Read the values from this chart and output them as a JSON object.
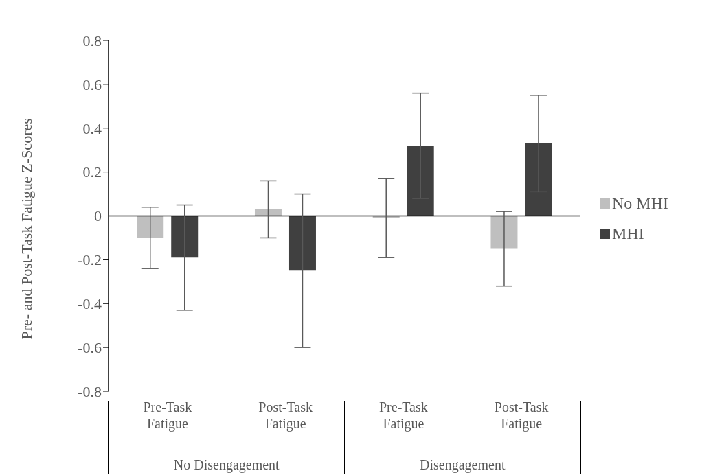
{
  "chart_data": {
    "type": "bar",
    "ylabel": "Pre- and Post-Task Fatigue Z-Scores",
    "categories": [
      "Pre-Task Fatigue",
      "Post-Task Fatigue",
      "Pre-Task Fatigue",
      "Post-Task Fatigue"
    ],
    "series": [
      {
        "name": "No MHI",
        "color": "#bfbfbf",
        "values": [
          -0.1,
          0.03,
          -0.01,
          -0.15
        ],
        "errors": [
          0.14,
          0.13,
          0.18,
          0.17
        ]
      },
      {
        "name": "MHI",
        "color": "#404040",
        "values": [
          -0.19,
          -0.25,
          0.32,
          0.33
        ],
        "errors": [
          0.24,
          0.35,
          0.24,
          0.22
        ]
      }
    ],
    "ylim": [
      -0.8,
      0.8
    ],
    "yticks": [
      -0.8,
      -0.6,
      -0.4,
      -0.2,
      0,
      0.2,
      0.4,
      0.6,
      0.8
    ],
    "annotations": [
      "No Disengagement",
      "Disengagement"
    ],
    "ref_lines": [
      {
        "axis": "y",
        "value": 0,
        "color": "#000000"
      }
    ],
    "grid": false,
    "legend": "right"
  }
}
